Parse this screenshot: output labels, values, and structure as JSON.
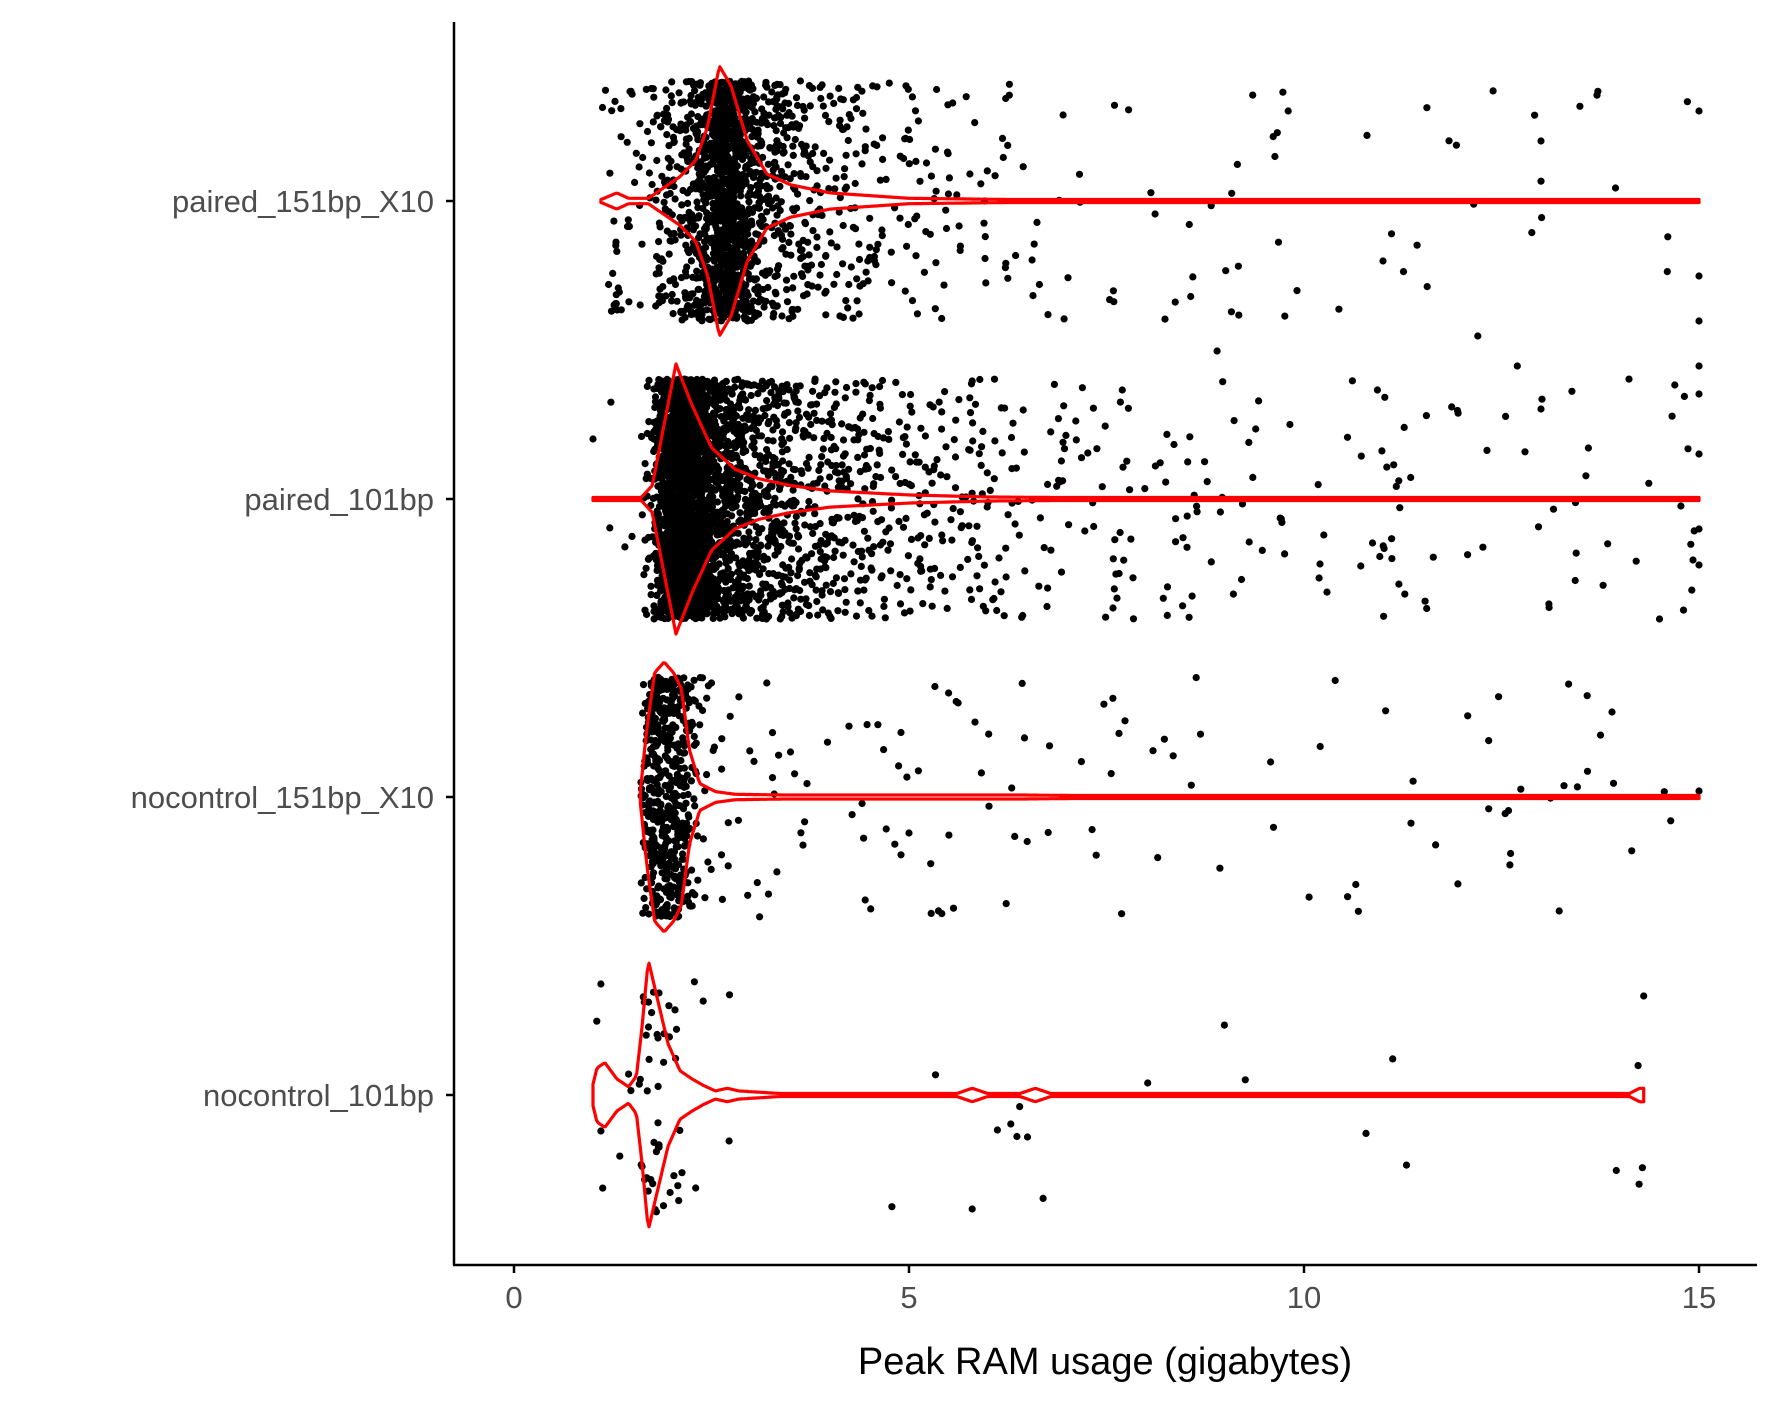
{
  "chart_data": {
    "type": "scatter",
    "subtype": "jitter-with-violin",
    "title": "",
    "xlabel": "Peak RAM usage (gigabytes)",
    "ylabel": "",
    "xlim": [
      0,
      15
    ],
    "x_ticks": [
      0,
      5,
      10,
      15
    ],
    "x_tick_labels": [
      "0",
      "5",
      "10",
      "15"
    ],
    "grid": false,
    "legend": "none",
    "colors": {
      "points": "#000000",
      "violin": "#ff0000",
      "axis": "#000000",
      "tick_label": "#4d4d4d"
    },
    "categories": [
      "paired_151bp_X10",
      "paired_101bp",
      "nocontrol_151bp_X10",
      "nocontrol_101bp"
    ],
    "groups": [
      {
        "name": "paired_151bp_X10",
        "summary": {
          "min": 1.1,
          "mode": 2.6,
          "max": 15.0,
          "approx_n": 1800
        },
        "density": [
          [
            1.1,
            0.01
          ],
          [
            1.3,
            0.06
          ],
          [
            1.45,
            0.02
          ],
          [
            1.7,
            0.02
          ],
          [
            1.9,
            0.1
          ],
          [
            2.1,
            0.18
          ],
          [
            2.3,
            0.3
          ],
          [
            2.45,
            0.55
          ],
          [
            2.6,
            1.0
          ],
          [
            2.75,
            0.85
          ],
          [
            2.95,
            0.45
          ],
          [
            3.2,
            0.2
          ],
          [
            3.5,
            0.12
          ],
          [
            4.0,
            0.06
          ],
          [
            5.0,
            0.02
          ],
          [
            7.0,
            0.006
          ],
          [
            10.0,
            0.003
          ],
          [
            15.0,
            0.002
          ]
        ],
        "notable_points": [
          [
            5.8,
            0.6
          ],
          [
            7.7,
            0.63
          ],
          [
            8.9,
            0.5
          ],
          [
            9.8,
            -0.3
          ],
          [
            12.7,
            0.55
          ],
          [
            12.2,
            0.45
          ],
          [
            11.0,
            0.2
          ],
          [
            13.0,
            -0.2
          ],
          [
            15.0,
            0.55
          ],
          [
            15.0,
            0.4
          ],
          [
            15.0,
            0.25
          ],
          [
            15.0,
            -0.3
          ]
        ]
      },
      {
        "name": "paired_101bp",
        "summary": {
          "min": 1.0,
          "mode": 2.1,
          "max": 15.0,
          "approx_n": 3200
        },
        "density": [
          [
            1.0,
            0.003
          ],
          [
            1.6,
            0.005
          ],
          [
            1.75,
            0.1
          ],
          [
            1.9,
            0.55
          ],
          [
            2.05,
            1.0
          ],
          [
            2.25,
            0.7
          ],
          [
            2.5,
            0.38
          ],
          [
            2.8,
            0.22
          ],
          [
            3.1,
            0.15
          ],
          [
            3.5,
            0.1
          ],
          [
            4.0,
            0.06
          ],
          [
            5.0,
            0.03
          ],
          [
            6.0,
            0.015
          ],
          [
            8.0,
            0.006
          ],
          [
            10.0,
            0.004
          ],
          [
            15.0,
            0.003
          ]
        ],
        "notable_points": [
          [
            1.0,
            -0.2
          ],
          [
            13.1,
            0.35
          ],
          [
            14.5,
            0.4
          ],
          [
            13.0,
            -0.3
          ],
          [
            13.6,
            -0.17
          ],
          [
            15.0,
            0.22
          ],
          [
            15.0,
            0.1
          ],
          [
            15.0,
            -0.15
          ],
          [
            15.0,
            -0.35
          ]
        ]
      },
      {
        "name": "nocontrol_151bp_X10",
        "summary": {
          "min": 1.6,
          "mode": 1.9,
          "max": 15.0,
          "approx_n": 650
        },
        "density": [
          [
            1.6,
            0.05
          ],
          [
            1.68,
            0.5
          ],
          [
            1.78,
            0.92
          ],
          [
            1.9,
            1.0
          ],
          [
            2.02,
            0.92
          ],
          [
            2.12,
            0.8
          ],
          [
            2.22,
            0.35
          ],
          [
            2.35,
            0.1
          ],
          [
            2.55,
            0.04
          ],
          [
            2.8,
            0.02
          ],
          [
            3.4,
            0.015
          ],
          [
            3.6,
            0.015
          ],
          [
            5.0,
            0.015
          ],
          [
            6.4,
            0.015
          ],
          [
            8.0,
            0.006
          ],
          [
            15.0,
            0.006
          ]
        ],
        "notable_points": [
          [
            5.0,
            0.12
          ],
          [
            6.3,
            -0.03
          ],
          [
            15.0,
            -0.02
          ],
          [
            3.5,
            -0.15
          ],
          [
            3.2,
            -0.38
          ],
          [
            2.5,
            -0.38
          ]
        ]
      },
      {
        "name": "nocontrol_101bp",
        "summary": {
          "min": 1.0,
          "mode": 1.7,
          "max": 14.3,
          "approx_n": 70
        },
        "density": [
          [
            1.0,
            0.08
          ],
          [
            1.05,
            0.2
          ],
          [
            1.15,
            0.24
          ],
          [
            1.3,
            0.12
          ],
          [
            1.45,
            0.06
          ],
          [
            1.55,
            0.14
          ],
          [
            1.62,
            0.5
          ],
          [
            1.7,
            1.0
          ],
          [
            1.8,
            0.75
          ],
          [
            1.95,
            0.38
          ],
          [
            2.1,
            0.18
          ],
          [
            2.25,
            0.12
          ],
          [
            2.4,
            0.07
          ],
          [
            2.55,
            0.03
          ],
          [
            2.7,
            0.05
          ],
          [
            2.85,
            0.03
          ],
          [
            3.4,
            0.01
          ],
          [
            5.6,
            0.01
          ],
          [
            5.8,
            0.05
          ],
          [
            6.0,
            0.01
          ],
          [
            6.4,
            0.01
          ],
          [
            6.6,
            0.05
          ],
          [
            6.8,
            0.01
          ],
          [
            9.0,
            0.005
          ],
          [
            14.1,
            0.005
          ],
          [
            14.25,
            0.05
          ],
          [
            14.3,
            0.05
          ]
        ],
        "notable_points": [
          [
            5.8,
            0.38
          ],
          [
            6.5,
            0.14
          ],
          [
            14.3,
            -0.33
          ],
          [
            1.1,
            -0.37
          ],
          [
            1.1,
            0.12
          ],
          [
            2.3,
            0.31
          ]
        ]
      }
    ]
  }
}
